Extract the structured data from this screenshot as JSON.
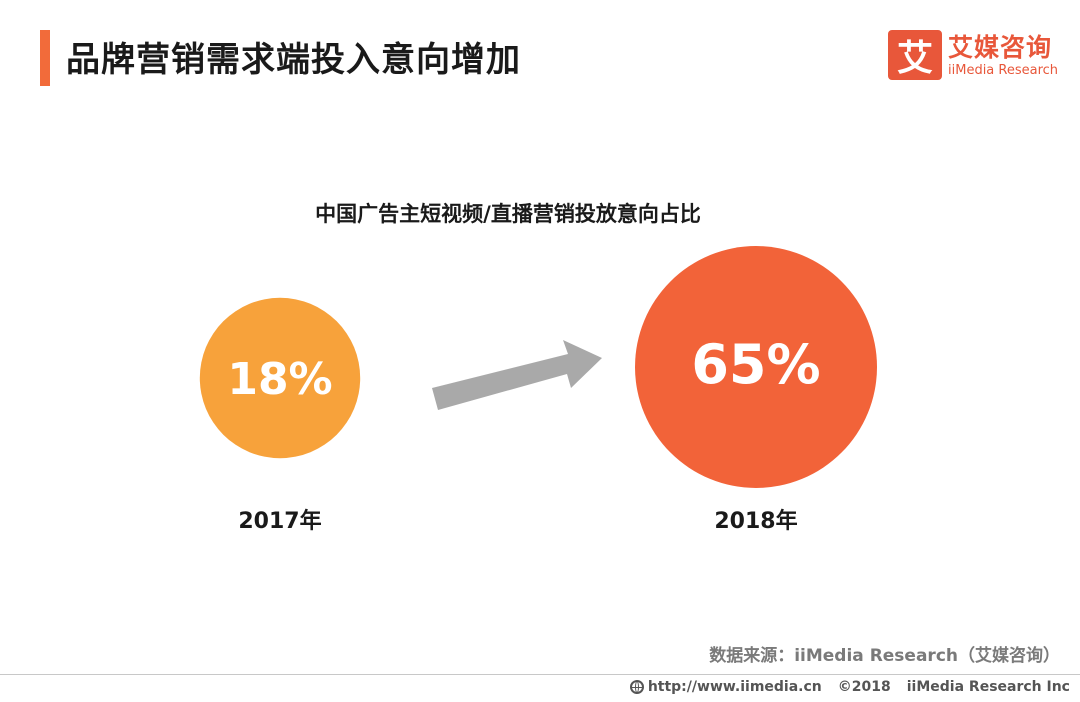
{
  "header": {
    "title": "品牌营销需求端投入意向增加",
    "logo_mark": "艾",
    "logo_cn": "艾媒咨询",
    "logo_en": "iiMedia Research"
  },
  "chart_data": {
    "type": "bubble-comparison",
    "title": "中国广告主短视频/直播营销投放意向占比",
    "categories": [
      "2017年",
      "2018年"
    ],
    "values": [
      18,
      65
    ],
    "value_labels": [
      "18%",
      "65%"
    ],
    "unit": "%",
    "colors": [
      "#f7a23b",
      "#f26339"
    ],
    "arrow_color": "#a9a9a9"
  },
  "source": "数据来源：iiMedia Research（艾媒咨询）",
  "footer": {
    "url": "http://www.iimedia.cn",
    "copyright": "©2018",
    "company": "iiMedia Research Inc"
  }
}
